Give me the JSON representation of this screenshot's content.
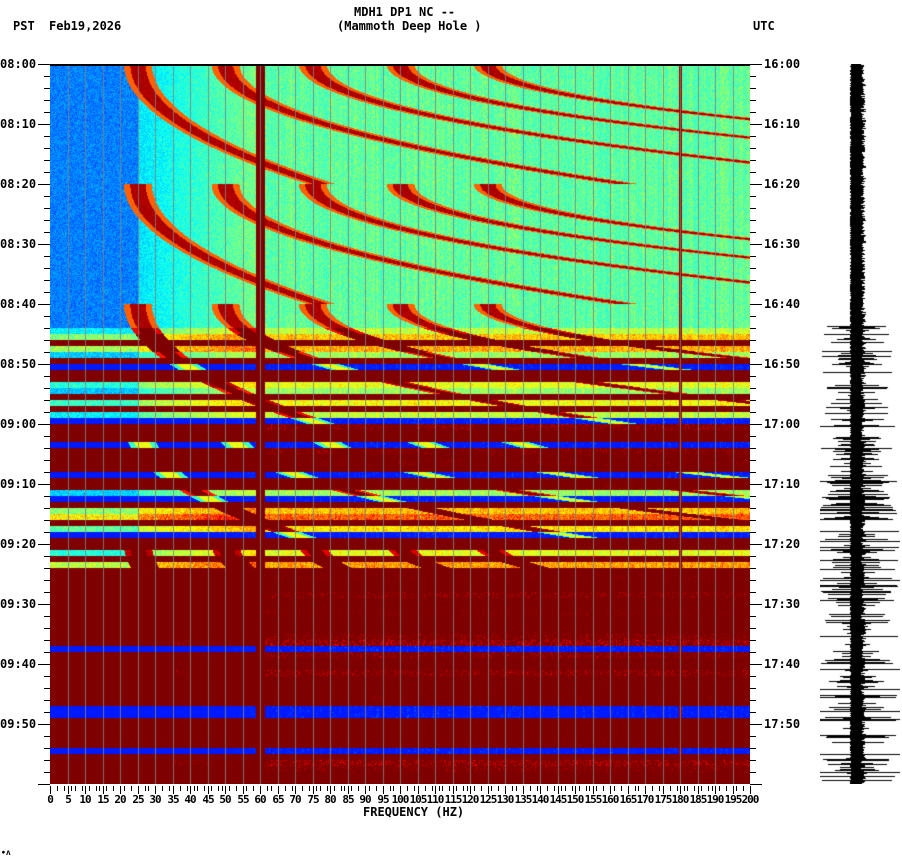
{
  "header": {
    "station": "MDH1 DP1 NC --",
    "site": "(Mammoth Deep Hole )",
    "left_tz": "PST",
    "date": "Feb19,2026",
    "right_tz": "UTC"
  },
  "footer_mark": "∙ʌ",
  "chart_data": {
    "type": "heatmap",
    "title": "MDH1 DP1 NC -- (Mammoth Deep Hole )",
    "subtitle": "Feb19,2026",
    "xlabel": "FREQUENCY (HZ)",
    "ylabel_left": "PST",
    "ylabel_right": "UTC",
    "xlim": [
      0,
      200
    ],
    "x_ticks": [
      "0",
      "5",
      "10",
      "15",
      "20",
      "25",
      "30",
      "35",
      "40",
      "45",
      "50",
      "55",
      "60",
      "65",
      "70",
      "75",
      "80",
      "85",
      "90",
      "95",
      "100",
      "105",
      "110",
      "115",
      "120",
      "125",
      "130",
      "135",
      "140",
      "145",
      "150",
      "155",
      "160",
      "165",
      "170",
      "175",
      "180",
      "185",
      "190",
      "195",
      "200"
    ],
    "y_ticks_left": [
      "08:00",
      "08:10",
      "08:20",
      "08:30",
      "08:40",
      "08:50",
      "09:00",
      "09:10",
      "09:20",
      "09:30",
      "09:40",
      "09:50"
    ],
    "y_ticks_right": [
      "16:00",
      "16:10",
      "16:20",
      "16:30",
      "16:40",
      "16:50",
      "17:00",
      "17:10",
      "17:20",
      "17:30",
      "17:40",
      "17:50"
    ],
    "time_range_pst": [
      "08:00",
      "10:00"
    ],
    "colormap": "jet (blue=low power, dark red=high power)",
    "grid": "vertical gridlines every 5 Hz",
    "features": [
      {
        "type": "constant_line",
        "freq_hz": 60,
        "note": "strong dark red band across entire time span"
      },
      {
        "type": "constant_line",
        "freq_hz": 180,
        "note": "thin dark line"
      },
      {
        "type": "chirp_sweeps",
        "time_range": [
          "08:00",
          "09:25"
        ],
        "note": "repeated curved harmonic sweeps rising from ~20-40 Hz, period ~20 min"
      },
      {
        "type": "broadband_noise",
        "time_range": [
          "08:43",
          "10:00"
        ],
        "note": "horizontal high-power bands, increasing toward end"
      }
    ],
    "side_panel": {
      "type": "seismogram_trace",
      "note": "amplitude increases after ~08:43"
    }
  }
}
